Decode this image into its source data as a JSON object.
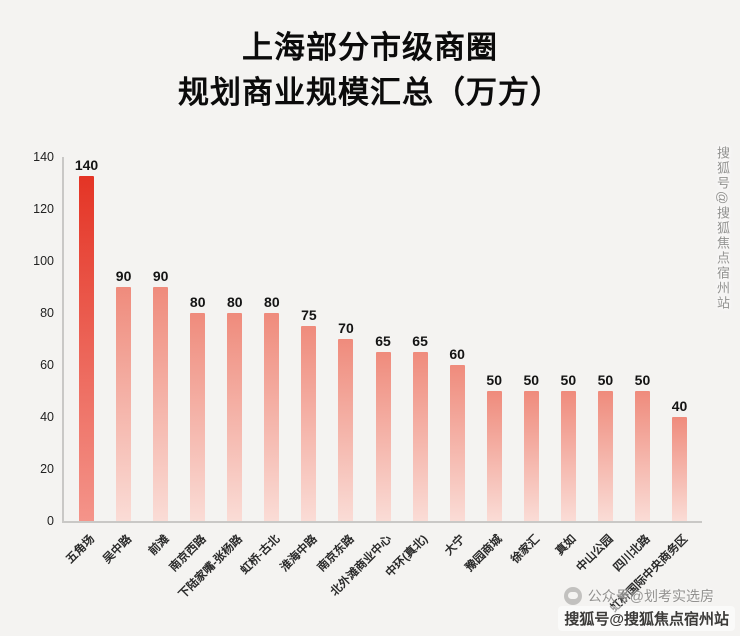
{
  "title": {
    "line1": "上海部分市级商圈",
    "line2": "规划商业规模汇总（万方）"
  },
  "chart_data": {
    "type": "bar",
    "title": "上海部分市级商圈规划商业规模汇总（万方）",
    "categories": [
      "五角场",
      "吴中路",
      "前滩",
      "南京西路",
      "下陆家嘴-张杨路",
      "虹桥-古北",
      "淮海中路",
      "南京东路",
      "北外滩商业中心",
      "中环(真北)",
      "大宁",
      "豫园商城",
      "徐家汇",
      "真如",
      "中山公园",
      "四川北路",
      "虹桥国际中央商务区"
    ],
    "values": [
      140,
      90,
      90,
      80,
      80,
      80,
      75,
      70,
      65,
      65,
      60,
      50,
      50,
      50,
      50,
      50,
      40
    ],
    "xlabel": "",
    "ylabel": "",
    "ylim": [
      0,
      140
    ],
    "y_ticks": [
      0,
      20,
      40,
      60,
      80,
      100,
      120,
      140
    ],
    "grid": false,
    "legend": false,
    "highlight_index": 0,
    "colors": {
      "highlight": {
        "top": "#e43425",
        "bottom": "#f4948a"
      },
      "normal": {
        "top": "#ef8b7c",
        "bottom": "#fadcd6"
      },
      "axis": "#c9c8c6"
    }
  },
  "watermarks": {
    "side_vertical": "搜狐号@搜狐焦点宿州站",
    "gongzhonghao": "公众号@划考实选房",
    "bottom_right": "搜狐号@搜狐焦点宿州站"
  }
}
